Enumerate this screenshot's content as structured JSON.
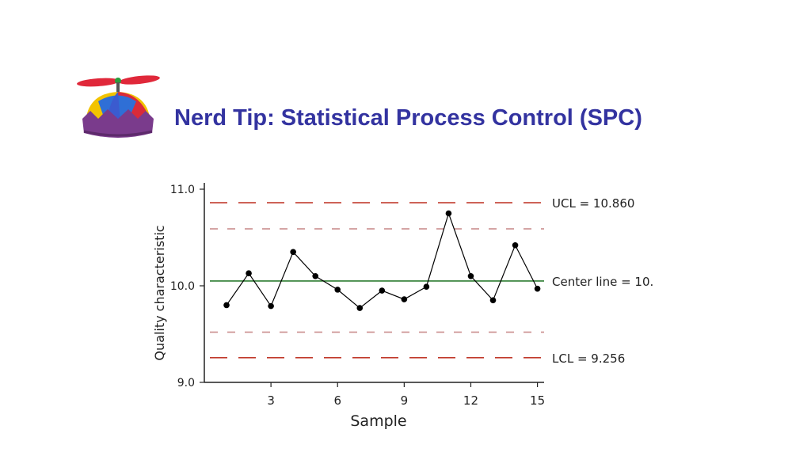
{
  "slide": {
    "title": "Nerd Tip: Statistical Process Control (SPC)",
    "logo_icon": "propeller-beanie-icon"
  },
  "chart_data": {
    "type": "line",
    "xlabel": "Sample",
    "ylabel": "Quality characteristic",
    "xlim": [
      0,
      15.3
    ],
    "ylim": [
      9.0,
      11.0
    ],
    "x_ticks": [
      3,
      6,
      9,
      12,
      15
    ],
    "y_ticks": [
      9.0,
      10.0,
      11.0
    ],
    "y_tick_labels": [
      "9.0",
      "10.0",
      "11.0"
    ],
    "grid": false,
    "series": [
      {
        "x": [
          1,
          2,
          3,
          4,
          5,
          6,
          7,
          8,
          9,
          10,
          11,
          12,
          13,
          14,
          15
        ],
        "y": [
          9.8,
          10.13,
          9.79,
          10.35,
          10.1,
          9.96,
          9.77,
          9.95,
          9.86,
          9.99,
          10.75,
          10.1,
          9.85,
          10.42,
          9.97
        ],
        "color": "#000000"
      }
    ],
    "reference_lines": [
      {
        "key": "ucl",
        "y": 10.86,
        "label": "UCL = 10.860",
        "color": "#c0392b",
        "style": "long-dash"
      },
      {
        "key": "upper_warning",
        "y": 10.59,
        "label": "",
        "color": "#c98c8c",
        "style": "short-dash"
      },
      {
        "key": "center",
        "y": 10.05,
        "label": "Center line = 10.",
        "color": "#2e7d32",
        "style": "solid"
      },
      {
        "key": "lower_warning",
        "y": 9.52,
        "label": "",
        "color": "#c98c8c",
        "style": "short-dash"
      },
      {
        "key": "lcl",
        "y": 9.256,
        "label": "LCL = 9.256",
        "color": "#c0392b",
        "style": "long-dash"
      }
    ]
  }
}
